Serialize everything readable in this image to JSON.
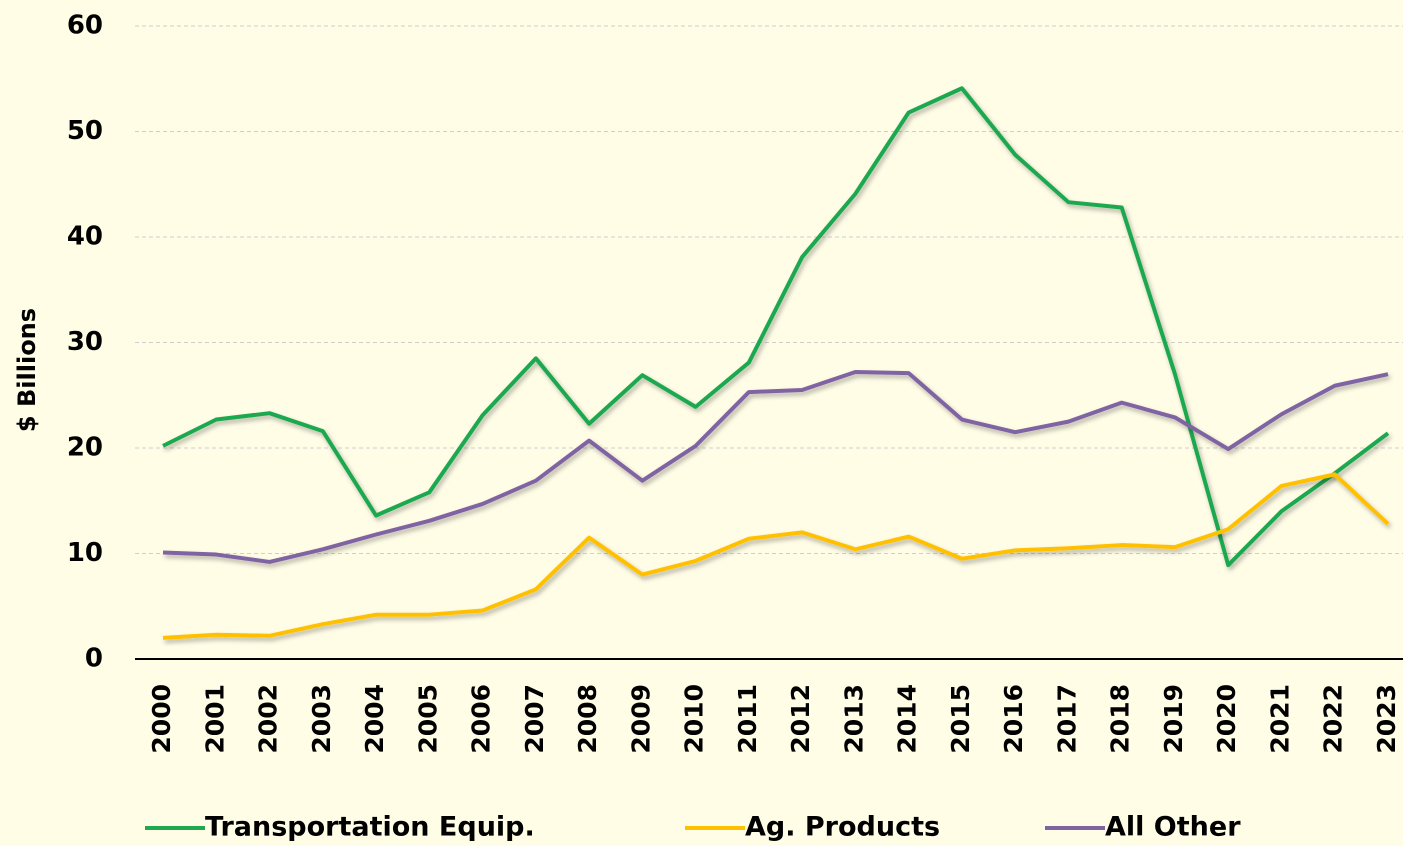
{
  "chart_data": {
    "type": "line",
    "y_label": "$ Billions",
    "categories": [
      "2000",
      "2001",
      "2002",
      "2003",
      "2004",
      "2005",
      "2006",
      "2007",
      "2008",
      "2009",
      "2010",
      "2011",
      "2012",
      "2013",
      "2014",
      "2015",
      "2016",
      "2017",
      "2018",
      "2019",
      "2020",
      "2021",
      "2022",
      "2023"
    ],
    "series": [
      {
        "name": "Transportation Equip.",
        "color": "#1fa84f",
        "values": [
          20.2,
          22.7,
          23.3,
          21.6,
          13.6,
          15.8,
          23.1,
          28.5,
          22.3,
          26.9,
          23.9,
          28.1,
          38.1,
          44.1,
          51.8,
          54.1,
          47.8,
          43.3,
          42.8,
          27.0,
          8.9,
          14.0,
          17.6,
          21.4
        ]
      },
      {
        "name": "Ag. Products",
        "color": "#ffc000",
        "values": [
          2.0,
          2.3,
          2.2,
          3.3,
          4.2,
          4.2,
          4.6,
          6.6,
          11.5,
          8.0,
          9.3,
          11.4,
          12.0,
          10.4,
          11.6,
          9.5,
          10.3,
          10.5,
          10.8,
          10.6,
          12.3,
          16.4,
          17.5,
          12.8
        ]
      },
      {
        "name": "All Other",
        "color": "#8064a2",
        "values": [
          10.1,
          9.9,
          9.2,
          10.4,
          11.8,
          13.1,
          14.7,
          16.9,
          20.7,
          16.9,
          20.2,
          25.3,
          25.5,
          27.2,
          27.1,
          22.7,
          21.5,
          22.5,
          24.3,
          22.9,
          19.9,
          23.2,
          25.9,
          27.0
        ]
      }
    ],
    "ylim": [
      0,
      60
    ],
    "yticks": [
      0,
      10,
      20,
      30,
      40,
      50,
      60
    ],
    "grid": true,
    "legend": "bottom"
  }
}
